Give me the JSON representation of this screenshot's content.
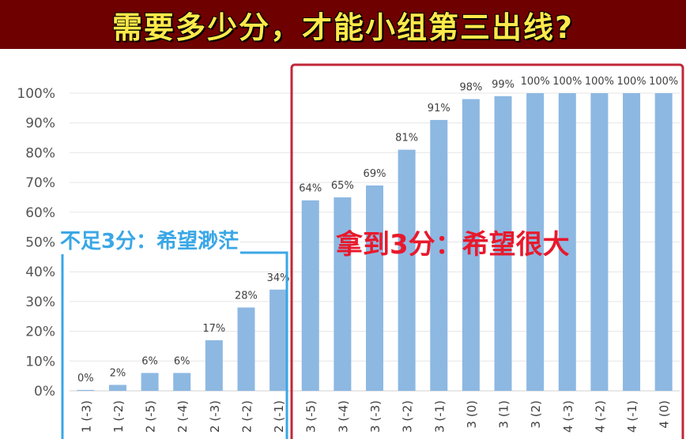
{
  "title": "需要多少分，才能小组第三出线?",
  "colors": {
    "title_bg": "#6e0000",
    "title_text": "#ffe94a",
    "bar": "#8db8e2",
    "low_box": "#3aa7e6",
    "high_box": "#c0283a",
    "low_text": "#3aa7e6",
    "high_text": "#e8192c"
  },
  "annotations": {
    "low": "不足3分：希望渺茫",
    "high": "拿到3分：希望很大"
  },
  "chart_data": {
    "type": "bar",
    "categories": [
      "1 (-3)",
      "1 (-2)",
      "2 (-5)",
      "2 (-4)",
      "2 (-3)",
      "2 (-2)",
      "2 (-1)",
      "3 (-5)",
      "3 (-4)",
      "3 (-3)",
      "3 (-2)",
      "3 (-1)",
      "3 (0)",
      "3 (1)",
      "3 (2)",
      "4 (-3)",
      "4 (-2)",
      "4 (-1)",
      "4 (0)"
    ],
    "values": [
      0.3,
      2,
      6,
      6,
      17,
      28,
      34,
      64,
      65,
      69,
      81,
      91,
      98,
      99,
      100,
      100,
      100,
      100,
      100
    ],
    "data_labels": [
      "0%",
      "2%",
      "6%",
      "6%",
      "17%",
      "28%",
      "34%",
      "64%",
      "65%",
      "69%",
      "81%",
      "91%",
      "98%",
      "99%",
      "100%",
      "100%",
      "100%",
      "100%",
      "100%"
    ],
    "y_ticks": [
      "0%",
      "10%",
      "20%",
      "30%",
      "40%",
      "50%",
      "60%",
      "70%",
      "80%",
      "90%",
      "100%"
    ],
    "ylim": [
      0,
      100
    ],
    "grid": true,
    "title": "",
    "xlabel": "",
    "ylabel": ""
  }
}
